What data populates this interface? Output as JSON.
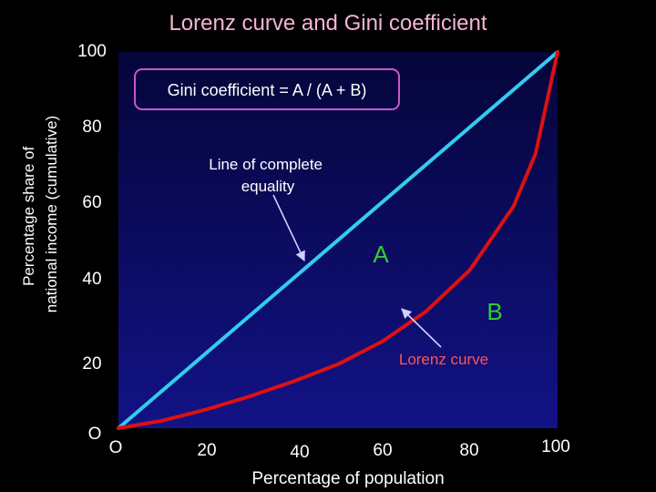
{
  "chart_data": {
    "type": "line",
    "title": "Lorenz curve and Gini coefficient",
    "xlabel": "Percentage of population",
    "ylabel_lines": [
      "Percentage share of",
      "national income (cumulative)"
    ],
    "xlim": [
      0,
      100
    ],
    "ylim": [
      0,
      100
    ],
    "x_ticks": [
      "20",
      "40",
      "60",
      "80",
      "100"
    ],
    "y_ticks": [
      "20",
      "40",
      "60",
      "80",
      "100"
    ],
    "origin_labels": [
      "O",
      "O"
    ],
    "series": [
      {
        "key": "equality",
        "color": "#33ccee",
        "x": [
          0,
          100
        ],
        "y": [
          0,
          100
        ]
      },
      {
        "key": "lorenz",
        "color": "#dd1111",
        "x": [
          0,
          10,
          20,
          30,
          40,
          50,
          60,
          70,
          80,
          90,
          95,
          100
        ],
        "y": [
          0,
          2,
          5,
          8.5,
          12.5,
          17,
          23,
          31,
          42,
          59,
          73,
          100
        ]
      }
    ],
    "annotations": {
      "gini_box": "Gini coefficient = A / (A + B)",
      "equality_label_lines": [
        "Line of complete",
        "equality"
      ],
      "area_a": "A",
      "area_b": "B",
      "lorenz_label": "Lorenz curve"
    },
    "colors": {
      "plot_background_top": "#05053a",
      "plot_background_bottom": "#121286",
      "title": "#f6b3d6",
      "text": "#ffffff",
      "gini_box_border": "#cc55cc",
      "area_label": "#33cc33",
      "lorenz_label": "#ff5555",
      "arrow": "#d0d0ff"
    }
  }
}
